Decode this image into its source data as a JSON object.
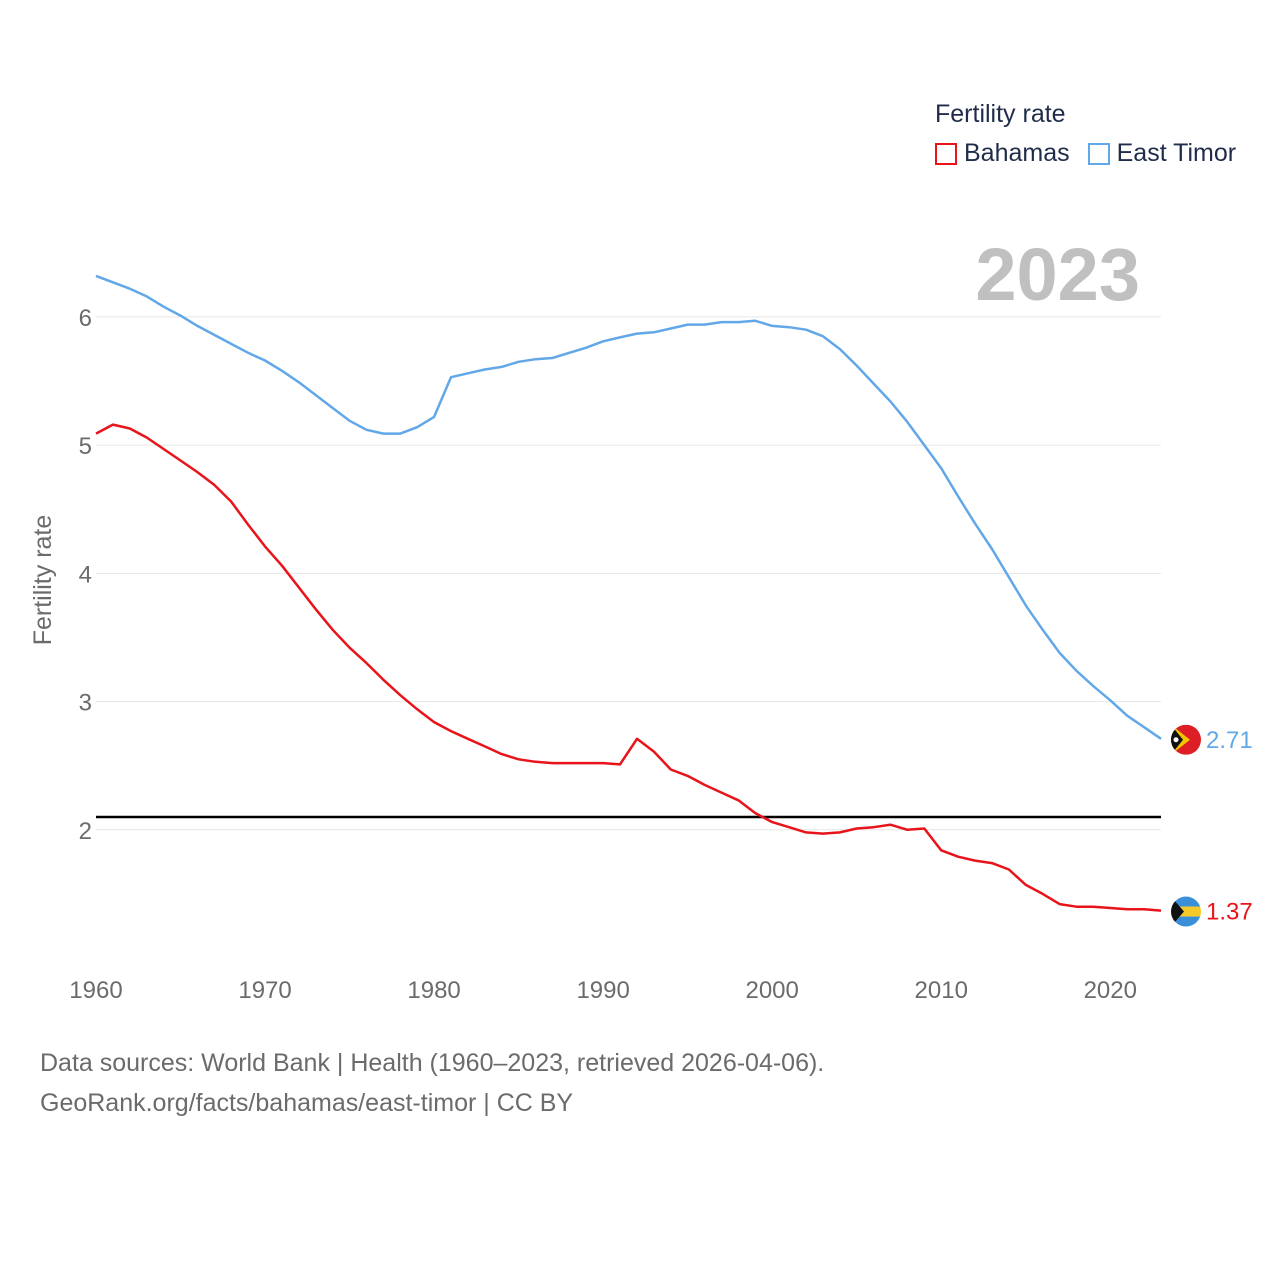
{
  "legend": {
    "title": "Fertility rate"
  },
  "footer": {
    "line1": "Data sources: World Bank | Health (1960–2023, retrieved 2026-04-06).",
    "line2": "GeoRank.org/facts/bahamas/east-timor | CC BY"
  },
  "chart_data": {
    "type": "line",
    "title": "Fertility rate",
    "year_label": "2023",
    "ylabel": "Fertility rate",
    "xlabel": "",
    "xlim": [
      1960,
      2023
    ],
    "ylim": [
      1.0,
      6.6
    ],
    "xticks": [
      1960,
      1970,
      1980,
      1990,
      2000,
      2010,
      2020
    ],
    "yticks": [
      2,
      3,
      4,
      5,
      6
    ],
    "reference_line": {
      "y": 2.1,
      "color": "#000000"
    },
    "x": [
      1960,
      1961,
      1962,
      1963,
      1964,
      1965,
      1966,
      1967,
      1968,
      1969,
      1970,
      1971,
      1972,
      1973,
      1974,
      1975,
      1976,
      1977,
      1978,
      1979,
      1980,
      1981,
      1982,
      1983,
      1984,
      1985,
      1986,
      1987,
      1988,
      1989,
      1990,
      1991,
      1992,
      1993,
      1994,
      1995,
      1996,
      1997,
      1998,
      1999,
      2000,
      2001,
      2002,
      2003,
      2004,
      2005,
      2006,
      2007,
      2008,
      2009,
      2010,
      2011,
      2012,
      2013,
      2014,
      2015,
      2016,
      2017,
      2018,
      2019,
      2020,
      2021,
      2022,
      2023
    ],
    "series": [
      {
        "name": "Bahamas",
        "color": "#e8141a",
        "end_label": "1.37",
        "flag": "bahamas-flag-icon",
        "values": [
          5.09,
          5.16,
          5.13,
          5.06,
          4.97,
          4.88,
          4.79,
          4.69,
          4.56,
          4.38,
          4.21,
          4.06,
          3.89,
          3.72,
          3.56,
          3.42,
          3.3,
          3.17,
          3.05,
          2.94,
          2.84,
          2.77,
          2.71,
          2.65,
          2.59,
          2.55,
          2.53,
          2.52,
          2.52,
          2.52,
          2.52,
          2.51,
          2.71,
          2.61,
          2.47,
          2.42,
          2.35,
          2.29,
          2.23,
          2.13,
          2.06,
          2.02,
          1.98,
          1.97,
          1.98,
          2.01,
          2.02,
          2.04,
          2.0,
          2.01,
          1.84,
          1.79,
          1.76,
          1.74,
          1.69,
          1.57,
          1.5,
          1.42,
          1.4,
          1.4,
          1.39,
          1.38,
          1.38,
          1.37
        ]
      },
      {
        "name": "East Timor",
        "color": "#62a8e8",
        "end_label": "2.71",
        "flag": "east-timor-flag-icon",
        "values": [
          6.32,
          6.27,
          6.22,
          6.16,
          6.08,
          6.01,
          5.93,
          5.86,
          5.79,
          5.72,
          5.66,
          5.58,
          5.49,
          5.39,
          5.29,
          5.19,
          5.12,
          5.09,
          5.09,
          5.14,
          5.22,
          5.53,
          5.56,
          5.59,
          5.61,
          5.65,
          5.67,
          5.68,
          5.72,
          5.76,
          5.81,
          5.84,
          5.87,
          5.88,
          5.91,
          5.94,
          5.94,
          5.96,
          5.96,
          5.97,
          5.93,
          5.92,
          5.9,
          5.85,
          5.75,
          5.62,
          5.48,
          5.34,
          5.18,
          5.0,
          4.82,
          4.6,
          4.39,
          4.19,
          3.97,
          3.75,
          3.56,
          3.38,
          3.24,
          3.12,
          3.01,
          2.89,
          2.8,
          2.71
        ]
      }
    ]
  }
}
